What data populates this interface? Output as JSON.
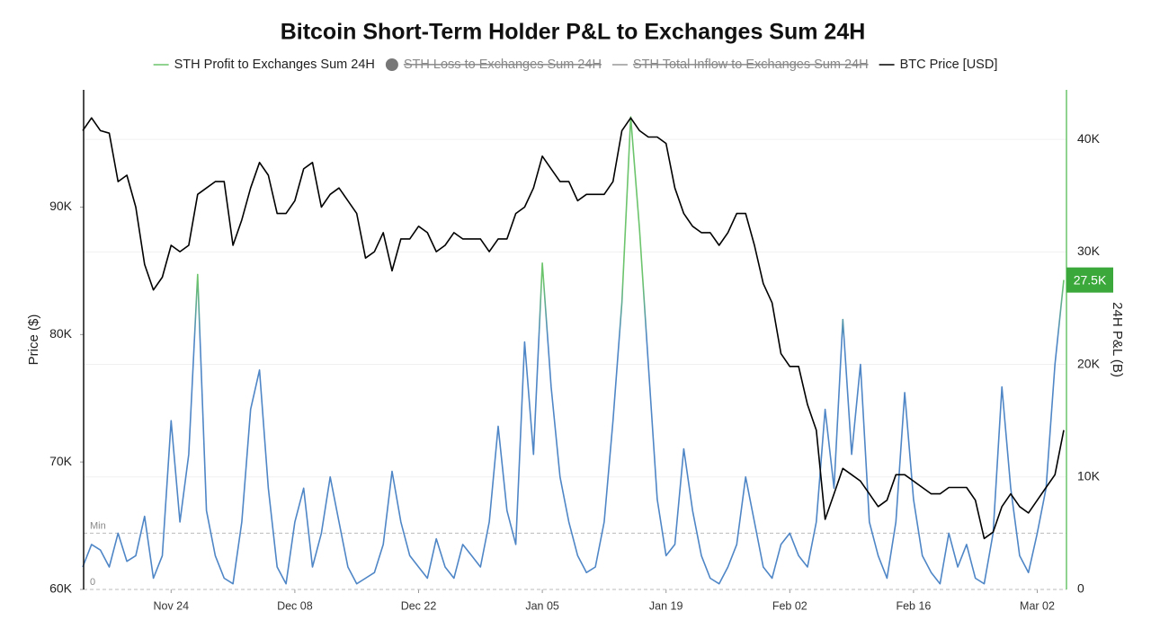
{
  "chart_data": {
    "type": "line",
    "title": "Bitcoin Short-Term Holder P&L to Exchanges Sum 24H",
    "categories": [
      "Nov 14",
      "Nov 15",
      "Nov 16",
      "Nov 17",
      "Nov 18",
      "Nov 19",
      "Nov 20",
      "Nov 21",
      "Nov 22",
      "Nov 23",
      "Nov 24",
      "Nov 25",
      "Nov 26",
      "Nov 27",
      "Nov 28",
      "Nov 29",
      "Nov 30",
      "Dec 01",
      "Dec 02",
      "Dec 03",
      "Dec 04",
      "Dec 05",
      "Dec 06",
      "Dec 07",
      "Dec 08",
      "Dec 09",
      "Dec 10",
      "Dec 11",
      "Dec 12",
      "Dec 13",
      "Dec 14",
      "Dec 15",
      "Dec 16",
      "Dec 17",
      "Dec 18",
      "Dec 19",
      "Dec 20",
      "Dec 21",
      "Dec 22",
      "Dec 23",
      "Dec 24",
      "Dec 25",
      "Dec 26",
      "Dec 27",
      "Dec 28",
      "Dec 29",
      "Dec 30",
      "Dec 31",
      "Jan 01",
      "Jan 02",
      "Jan 03",
      "Jan 04",
      "Jan 05",
      "Jan 06",
      "Jan 07",
      "Jan 08",
      "Jan 09",
      "Jan 10",
      "Jan 11",
      "Jan 12",
      "Jan 13",
      "Jan 14",
      "Jan 15",
      "Jan 16",
      "Jan 17",
      "Jan 18",
      "Jan 19",
      "Jan 20",
      "Jan 21",
      "Jan 22",
      "Jan 23",
      "Jan 24",
      "Jan 25",
      "Jan 26",
      "Jan 27",
      "Jan 28",
      "Jan 29",
      "Jan 30",
      "Jan 31",
      "Feb 01",
      "Feb 02",
      "Feb 03",
      "Feb 04",
      "Feb 05",
      "Feb 06",
      "Feb 07",
      "Feb 08",
      "Feb 09",
      "Feb 10",
      "Feb 11",
      "Feb 12",
      "Feb 13",
      "Feb 14",
      "Feb 15",
      "Feb 16",
      "Feb 17",
      "Feb 18",
      "Feb 19",
      "Feb 20",
      "Feb 21",
      "Feb 22",
      "Feb 23",
      "Feb 24",
      "Feb 25",
      "Feb 26",
      "Feb 27",
      "Feb 28",
      "Mar 01",
      "Mar 02",
      "Mar 03",
      "Mar 04",
      "Mar 05"
    ],
    "xticks": [
      "Nov 24",
      "Dec 08",
      "Dec 22",
      "Jan 05",
      "Jan 19",
      "Feb 02",
      "Feb 16",
      "Mar 02"
    ],
    "ylabel": "Price ($)",
    "y2label": "24H P&L (B)",
    "ylim": [
      60000,
      99200
    ],
    "yticks": [
      {
        "value": 60000,
        "label": "60K"
      },
      {
        "value": 70000,
        "label": "70K"
      },
      {
        "value": 80000,
        "label": "80K"
      },
      {
        "value": 90000,
        "label": "90K"
      }
    ],
    "y2lim": [
      0,
      44400
    ],
    "y2ticks": [
      0,
      {
        "value": 10000,
        "label": "10K"
      },
      {
        "value": 20000,
        "label": "20K"
      },
      {
        "value": 30000,
        "label": "30K"
      },
      {
        "value": 40000,
        "label": "40K"
      }
    ],
    "grid": true,
    "series": [
      {
        "name": "STH Profit to Exchanges Sum 24H",
        "color": "#6cc46c",
        "color_low": "#4f86c6",
        "axis": "y2",
        "last_value_label": "27.5K",
        "values": [
          2000,
          4000,
          3500,
          2000,
          5000,
          2500,
          3000,
          6500,
          1000,
          3000,
          15000,
          6000,
          12000,
          28000,
          7000,
          3000,
          1000,
          500,
          6000,
          16000,
          19500,
          9000,
          2000,
          500,
          6000,
          9000,
          2000,
          5000,
          10000,
          6000,
          2000,
          500,
          1000,
          1500,
          4000,
          10500,
          6000,
          3000,
          2000,
          1000,
          4500,
          2000,
          1000,
          4000,
          3000,
          2000,
          6000,
          14500,
          7000,
          4000,
          22000,
          12000,
          29000,
          18000,
          10000,
          6000,
          3000,
          1500,
          2000,
          6000,
          15000,
          25500,
          42000,
          32000,
          20000,
          8000,
          3000,
          4000,
          12500,
          7000,
          3000,
          1000,
          500,
          2000,
          4000,
          10000,
          6000,
          2000,
          1000,
          4000,
          5000,
          3000,
          2000,
          6000,
          16000,
          9000,
          24000,
          12000,
          20000,
          6000,
          3000,
          1000,
          6000,
          17500,
          8000,
          3000,
          1500,
          500,
          5000,
          2000,
          4000,
          1000,
          500,
          5000,
          18000,
          9000,
          3000,
          1500,
          5000,
          9000,
          20000,
          27500
        ]
      },
      {
        "name": "STH Loss to Exchanges Sum 24H",
        "color": "#777777",
        "marker": "circle",
        "hidden": true
      },
      {
        "name": "STH Total Inflow to  Exchanges Sum 24H",
        "color": "#999999",
        "hidden": true
      },
      {
        "name": "BTC Price [USD]",
        "color": "#000000",
        "values": [
          96000,
          97000,
          96000,
          95800,
          92000,
          92500,
          90000,
          85500,
          83500,
          84500,
          87000,
          86500,
          87000,
          91000,
          91500,
          92000,
          92000,
          87000,
          89000,
          91500,
          93500,
          92500,
          89500,
          89500,
          90500,
          93000,
          93500,
          90000,
          91000,
          91500,
          90500,
          89500,
          86000,
          86500,
          88000,
          85000,
          87500,
          87500,
          88500,
          88000,
          86500,
          87000,
          88000,
          87500,
          87500,
          87500,
          86500,
          87500,
          87500,
          89500,
          90000,
          91500,
          94000,
          93000,
          92000,
          92000,
          90500,
          91000,
          91000,
          91000,
          92000,
          96000,
          97000,
          96000,
          95500,
          95500,
          95000,
          91500,
          89500,
          88500,
          88000,
          88000,
          87000,
          88000,
          89500,
          89500,
          87000,
          84000,
          82500,
          78500,
          77500,
          77500,
          74500,
          72500,
          65500,
          67500,
          69500,
          69000,
          68500,
          67500,
          66500,
          67000,
          69000,
          69000,
          68500,
          68000,
          67500,
          67500,
          68000,
          68000,
          68000,
          67000,
          64000,
          64500,
          66500,
          67500,
          66500,
          66000,
          67000,
          68000,
          69000,
          72500
        ]
      }
    ],
    "reference_lines": [
      {
        "label": "Min",
        "value": 5000,
        "axis": "y2"
      },
      {
        "label": "0",
        "value": 0,
        "axis": "y2"
      }
    ]
  }
}
